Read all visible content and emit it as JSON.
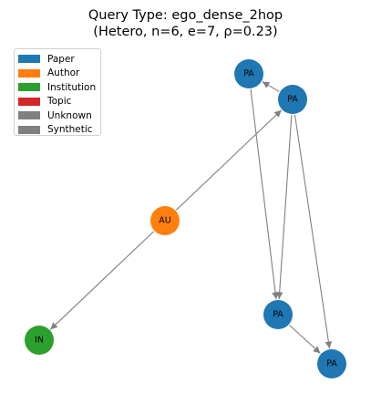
{
  "title": {
    "line1": "Query Type: ego_dense_2hop",
    "line2": "(Hetero, n=6, e=7, ρ=0.23)"
  },
  "legend": [
    {
      "label": "Paper",
      "color": "#1f77b4"
    },
    {
      "label": "Author",
      "color": "#ff7f0e"
    },
    {
      "label": "Institution",
      "color": "#2ca02c"
    },
    {
      "label": "Topic",
      "color": "#d62728"
    },
    {
      "label": "Unknown",
      "color": "#808080"
    },
    {
      "label": "Synthetic",
      "color": "#808080"
    }
  ],
  "graph": {
    "edge_color": "#808080",
    "nodes": [
      {
        "id": "pa1",
        "label": "PA",
        "type": "Paper",
        "color": "#1f77b4"
      },
      {
        "id": "pa2",
        "label": "PA",
        "type": "Paper",
        "color": "#1f77b4"
      },
      {
        "id": "au",
        "label": "AU",
        "type": "Author",
        "color": "#ff7f0e"
      },
      {
        "id": "pa3",
        "label": "PA",
        "type": "Paper",
        "color": "#1f77b4"
      },
      {
        "id": "in",
        "label": "IN",
        "type": "Institution",
        "color": "#2ca02c"
      },
      {
        "id": "pa4",
        "label": "PA",
        "type": "Paper",
        "color": "#1f77b4"
      }
    ],
    "edges": [
      {
        "from": "pa2",
        "to": "pa1"
      },
      {
        "from": "pa1",
        "to": "pa3"
      },
      {
        "from": "pa2",
        "to": "pa3"
      },
      {
        "from": "pa2",
        "to": "pa4"
      },
      {
        "from": "pa3",
        "to": "pa4"
      },
      {
        "from": "au",
        "to": "pa2"
      },
      {
        "from": "au",
        "to": "in"
      }
    ]
  }
}
